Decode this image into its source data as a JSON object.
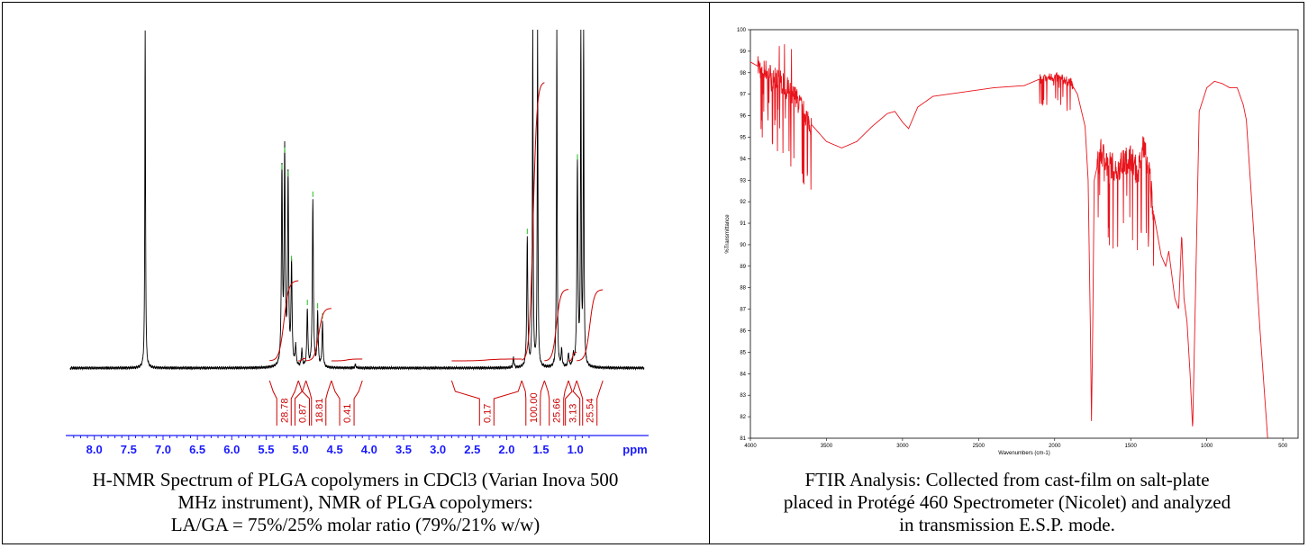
{
  "captions": {
    "nmr": [
      "H-NMR Spectrum of PLGA copolymers in CDCl3 (Varian Inova 500",
      "MHz instrument), NMR of PLGA copolymers:",
      "LA/GA = 75%/25% molar ratio (79%/21% w/w)"
    ],
    "ftir": [
      "FTIR Analysis: Collected from cast-film on salt-plate",
      "placed in Protégé 460 Spectrometer (Nicolet) and analyzed",
      "in transmission E.S.P. mode."
    ]
  },
  "chart_data": [
    {
      "type": "line",
      "xlabel": "ppm",
      "xlim": [
        8.35,
        0.0
      ],
      "x_ticks": [
        "8.0",
        "7.5",
        "7.0",
        "6.5",
        "6.0",
        "5.5",
        "5.0",
        "4.5",
        "4.0",
        "3.5",
        "3.0",
        "2.5",
        "2.0",
        "1.5",
        "1.0"
      ],
      "x_tick_values": [
        8.0,
        7.5,
        7.0,
        6.5,
        6.0,
        5.5,
        5.0,
        4.5,
        4.0,
        3.5,
        3.0,
        2.5,
        2.0,
        1.5,
        1.0
      ],
      "peaks": [
        {
          "ppm": 7.26,
          "height": 1.0
        },
        {
          "ppm": 5.27,
          "height": 0.57
        },
        {
          "ppm": 5.23,
          "height": 0.62
        },
        {
          "ppm": 5.18,
          "height": 0.55
        },
        {
          "ppm": 5.13,
          "height": 0.3
        },
        {
          "ppm": 5.07,
          "height": 0.06
        },
        {
          "ppm": 4.98,
          "height": 0.05
        },
        {
          "ppm": 4.9,
          "height": 0.17
        },
        {
          "ppm": 4.82,
          "height": 0.49
        },
        {
          "ppm": 4.75,
          "height": 0.16
        },
        {
          "ppm": 4.68,
          "height": 0.13
        },
        {
          "ppm": 4.2,
          "height": 0.01
        },
        {
          "ppm": 1.9,
          "height": 0.03
        },
        {
          "ppm": 1.7,
          "height": 0.38
        },
        {
          "ppm": 1.62,
          "height": 1.0
        },
        {
          "ppm": 1.55,
          "height": 1.0
        },
        {
          "ppm": 1.27,
          "height": 1.0
        },
        {
          "ppm": 1.2,
          "height": 0.05
        },
        {
          "ppm": 1.1,
          "height": 0.04
        },
        {
          "ppm": 1.03,
          "height": 0.03
        },
        {
          "ppm": 0.97,
          "height": 0.6
        },
        {
          "ppm": 0.92,
          "height": 1.0
        },
        {
          "ppm": 0.88,
          "height": 1.0
        }
      ],
      "integrals": [
        {
          "from": 5.45,
          "to": 5.03,
          "value": "28.78"
        },
        {
          "from": 5.03,
          "to": 4.92,
          "value": "0.87"
        },
        {
          "from": 4.92,
          "to": 4.55,
          "value": "18.81"
        },
        {
          "from": 4.55,
          "to": 4.1,
          "value": "0.41"
        },
        {
          "from": 2.8,
          "to": 1.78,
          "value": "0.17"
        },
        {
          "from": 1.78,
          "to": 1.45,
          "value": "100.00"
        },
        {
          "from": 1.45,
          "to": 1.1,
          "value": "25.66"
        },
        {
          "from": 1.1,
          "to": 0.98,
          "value": "3.13"
        },
        {
          "from": 0.98,
          "to": 0.6,
          "value": "25.54"
        }
      ]
    },
    {
      "type": "line",
      "xlabel": "Wavenumbers (cm-1)",
      "ylabel": "%Transmittance",
      "xlim": [
        4000,
        400
      ],
      "ylim": [
        81,
        100
      ],
      "x_ticks": [
        "4000",
        "3500",
        "3000",
        "2500",
        "2000",
        "1500",
        "1000",
        "500"
      ],
      "x_tick_values": [
        4000,
        3500,
        3000,
        2500,
        2000,
        1500,
        1000,
        500
      ],
      "y_ticks": [
        "100",
        "99",
        "98",
        "97",
        "96",
        "95",
        "94",
        "93",
        "92",
        "91",
        "90",
        "89",
        "88",
        "87",
        "86",
        "85",
        "84",
        "83",
        "82",
        "81"
      ],
      "y_tick_values": [
        100,
        99,
        98,
        97,
        96,
        95,
        94,
        93,
        92,
        91,
        90,
        89,
        88,
        87,
        86,
        85,
        84,
        83,
        82,
        81
      ],
      "color": "#e8141c",
      "baseline_points": [
        [
          4000,
          98.5
        ],
        [
          3900,
          98.1
        ],
        [
          3800,
          97.6
        ],
        [
          3700,
          96.8
        ],
        [
          3600,
          95.6
        ],
        [
          3500,
          94.8
        ],
        [
          3400,
          94.5
        ],
        [
          3300,
          94.8
        ],
        [
          3200,
          95.5
        ],
        [
          3100,
          96.1
        ],
        [
          3050,
          96.2
        ],
        [
          3000,
          95.7
        ],
        [
          2960,
          95.4
        ],
        [
          2900,
          96.4
        ],
        [
          2800,
          96.9
        ],
        [
          2600,
          97.1
        ],
        [
          2400,
          97.3
        ],
        [
          2200,
          97.4
        ],
        [
          2100,
          97.7
        ],
        [
          2000,
          97.8
        ],
        [
          1900,
          97.6
        ],
        [
          1850,
          97.0
        ],
        [
          1800,
          95.5
        ],
        [
          1780,
          93.0
        ],
        [
          1765,
          86.0
        ],
        [
          1758,
          81.8
        ],
        [
          1750,
          86.0
        ],
        [
          1740,
          93.0
        ],
        [
          1700,
          94.3
        ],
        [
          1600,
          93.5
        ],
        [
          1500,
          94.1
        ],
        [
          1452,
          93.3
        ],
        [
          1420,
          94.6
        ],
        [
          1380,
          93.6
        ],
        [
          1350,
          91.5
        ],
        [
          1300,
          89.5
        ],
        [
          1270,
          89.0
        ],
        [
          1250,
          89.7
        ],
        [
          1210,
          87.5
        ],
        [
          1185,
          87.0
        ],
        [
          1165,
          90.5
        ],
        [
          1150,
          87.5
        ],
        [
          1130,
          86.4
        ],
        [
          1110,
          84.0
        ],
        [
          1093,
          81.4
        ],
        [
          1075,
          87.5
        ],
        [
          1050,
          96.2
        ],
        [
          1000,
          97.3
        ],
        [
          950,
          97.6
        ],
        [
          900,
          97.5
        ],
        [
          850,
          97.3
        ],
        [
          800,
          97.3
        ],
        [
          760,
          96.5
        ],
        [
          740,
          95.8
        ],
        [
          700,
          91.5
        ],
        [
          650,
          86.0
        ],
        [
          620,
          83.0
        ],
        [
          600,
          81.0
        ]
      ],
      "noise_regions": [
        {
          "from": 3950,
          "to": 3600,
          "amplitude": 2.2
        },
        {
          "from": 2100,
          "to": 1880,
          "amplitude": 0.9
        },
        {
          "from": 1720,
          "to": 1350,
          "amplitude": 2.6
        }
      ]
    }
  ]
}
